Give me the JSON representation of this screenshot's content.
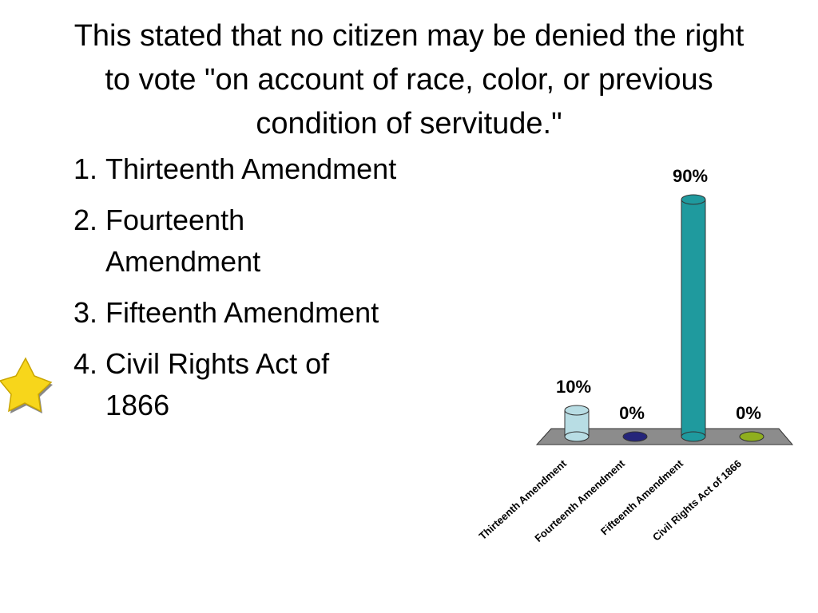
{
  "slide": {
    "title": "This stated that no citizen may be denied the right to vote \"on account of race, color, or previous condition of servitude.\"",
    "options": [
      "Thirteenth Amendment",
      "Fourteenth Amendment",
      "Fifteenth Amendment",
      "Civil Rights Act of 1866"
    ]
  },
  "chart_data": {
    "type": "bar",
    "categories": [
      "Thirteenth Amendment",
      "Fourteenth Amendment",
      "Fifteenth Amendment",
      "Civil Rights Act of 1866"
    ],
    "values": [
      10,
      0,
      90,
      0
    ],
    "value_labels": [
      "10%",
      "0%",
      "90%",
      "0%"
    ],
    "colors": [
      "#b8dde4",
      "#25257a",
      "#1f9a9e",
      "#8fae1e"
    ]
  }
}
